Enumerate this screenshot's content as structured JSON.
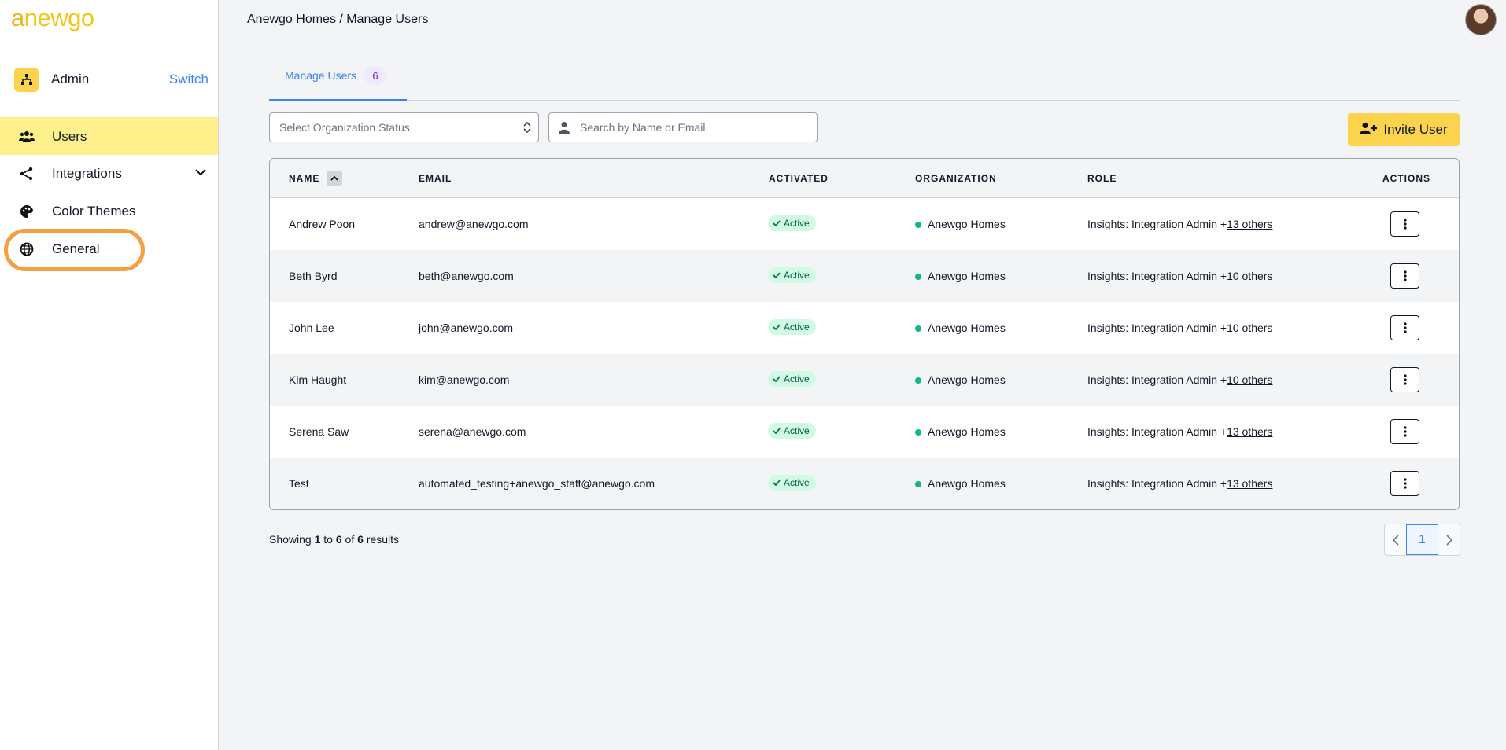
{
  "brand": {
    "logo_first": "a",
    "logo_rest": "newgo"
  },
  "sidebar": {
    "role_label": "Admin",
    "switch_label": "Switch",
    "items": [
      {
        "label": "Users",
        "icon": "users-icon",
        "active": true
      },
      {
        "label": "Integrations",
        "icon": "integrations-icon",
        "expandable": true
      },
      {
        "label": "Color Themes",
        "icon": "palette-icon"
      },
      {
        "label": "General",
        "icon": "globe-icon"
      }
    ]
  },
  "header": {
    "breadcrumb": "Anewgo Homes / Manage Users"
  },
  "tabs": [
    {
      "label": "Manage Users",
      "count": "6"
    }
  ],
  "filters": {
    "status_placeholder": "Select Organization Status",
    "search_placeholder": "Search by Name or Email",
    "invite_label": "Invite User"
  },
  "table": {
    "columns": [
      "NAME",
      "EMAIL",
      "ACTIVATED",
      "ORGANIZATION",
      "ROLE",
      "ACTIONS"
    ],
    "rows": [
      {
        "name": "Andrew Poon",
        "email": "andrew@anewgo.com",
        "activated": "Active",
        "organization": "Anewgo Homes",
        "role": "Insights: Integration Admin +",
        "role_more": "13 others"
      },
      {
        "name": "Beth Byrd",
        "email": "beth@anewgo.com",
        "activated": "Active",
        "organization": "Anewgo Homes",
        "role": "Insights: Integration Admin +",
        "role_more": "10 others"
      },
      {
        "name": "John Lee",
        "email": "john@anewgo.com",
        "activated": "Active",
        "organization": "Anewgo Homes",
        "role": "Insights: Integration Admin +",
        "role_more": "10 others"
      },
      {
        "name": "Kim Haught",
        "email": "kim@anewgo.com",
        "activated": "Active",
        "organization": "Anewgo Homes",
        "role": "Insights: Integration Admin +",
        "role_more": "10 others"
      },
      {
        "name": "Serena Saw",
        "email": "serena@anewgo.com",
        "activated": "Active",
        "organization": "Anewgo Homes",
        "role": "Insights: Integration Admin +",
        "role_more": "13 others"
      },
      {
        "name": "Test",
        "email": "automated_testing+anewgo_staff@anewgo.com",
        "activated": "Active",
        "organization": "Anewgo Homes",
        "role": "Insights: Integration Admin +",
        "role_more": "13 others"
      }
    ]
  },
  "footer": {
    "showing": "Showing",
    "from": "1",
    "to_word": "to",
    "to": "6",
    "of_word": "of",
    "total": "6",
    "results_word": "results",
    "current_page": "1"
  },
  "colors": {
    "accent": "#fcd34d",
    "link": "#3b82f6",
    "active_badge": "#d1fae5",
    "highlight_ring": "#f59e42"
  }
}
